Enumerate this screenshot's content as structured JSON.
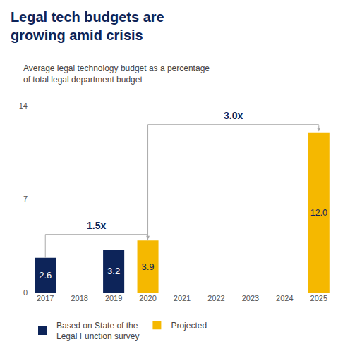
{
  "chart_data": {
    "type": "bar",
    "title": "Legal tech budgets are\ngrowing amid crisis",
    "subtitle": "Average legal technology budget as a percentage\nof total legal department budget",
    "categories": [
      "2017",
      "2018",
      "2019",
      "2020",
      "2021",
      "2022",
      "2023",
      "2024",
      "2025"
    ],
    "series": [
      {
        "name": "Based on State of the\nLegal Function survey",
        "color": "#0d2459",
        "values": [
          2.6,
          null,
          3.2,
          null,
          null,
          null,
          null,
          null,
          null
        ],
        "value_labels": [
          "2.6",
          null,
          "3.2",
          null,
          null,
          null,
          null,
          null,
          null
        ]
      },
      {
        "name": "Projected",
        "color": "#f5b800",
        "values": [
          null,
          null,
          null,
          3.9,
          null,
          null,
          null,
          null,
          12.0
        ],
        "value_labels": [
          null,
          null,
          null,
          "3.9",
          null,
          null,
          null,
          null,
          "12.0"
        ]
      }
    ],
    "ylim": [
      0,
      14
    ],
    "yticks": [
      0,
      7,
      14
    ],
    "grid": true,
    "legend": "bottom",
    "data_labels": true,
    "annotations": [
      {
        "text": "1.5x",
        "from": "2017",
        "to": "2020"
      },
      {
        "text": "3.0x",
        "from": "2020",
        "to": "2025"
      }
    ]
  }
}
